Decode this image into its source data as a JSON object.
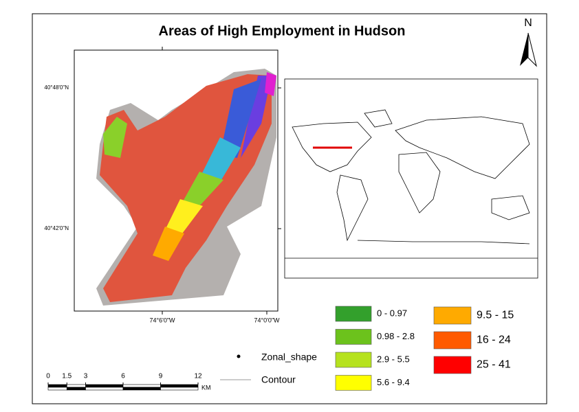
{
  "title": "Areas of High Employment in Hudson",
  "north": "N",
  "graticule": {
    "lat": [
      "40°48'0\"N",
      "40°42'0\"N"
    ],
    "lon": [
      "74°6'0\"W",
      "74°0'0\"W"
    ]
  },
  "legend": {
    "classes": [
      {
        "label": "0 - 0.97",
        "color": "#33a02c"
      },
      {
        "label": "0.98 - 2.8",
        "color": "#6cc21c"
      },
      {
        "label": "2.9 - 5.5",
        "color": "#b6e21e"
      },
      {
        "label": "5.6 - 9.4",
        "color": "#ffff00"
      },
      {
        "label": "9.5 - 15",
        "color": "#ffaa00"
      },
      {
        "label": "16 - 24",
        "color": "#ff5a00"
      },
      {
        "label": "25 - 41",
        "color": "#ff0000"
      }
    ],
    "features": [
      {
        "label": "Zonal_shape"
      },
      {
        "label": "Contour"
      }
    ]
  },
  "scale_bar": {
    "ticks": [
      0,
      1.5,
      3,
      6,
      9,
      12
    ],
    "unit": "KM"
  }
}
